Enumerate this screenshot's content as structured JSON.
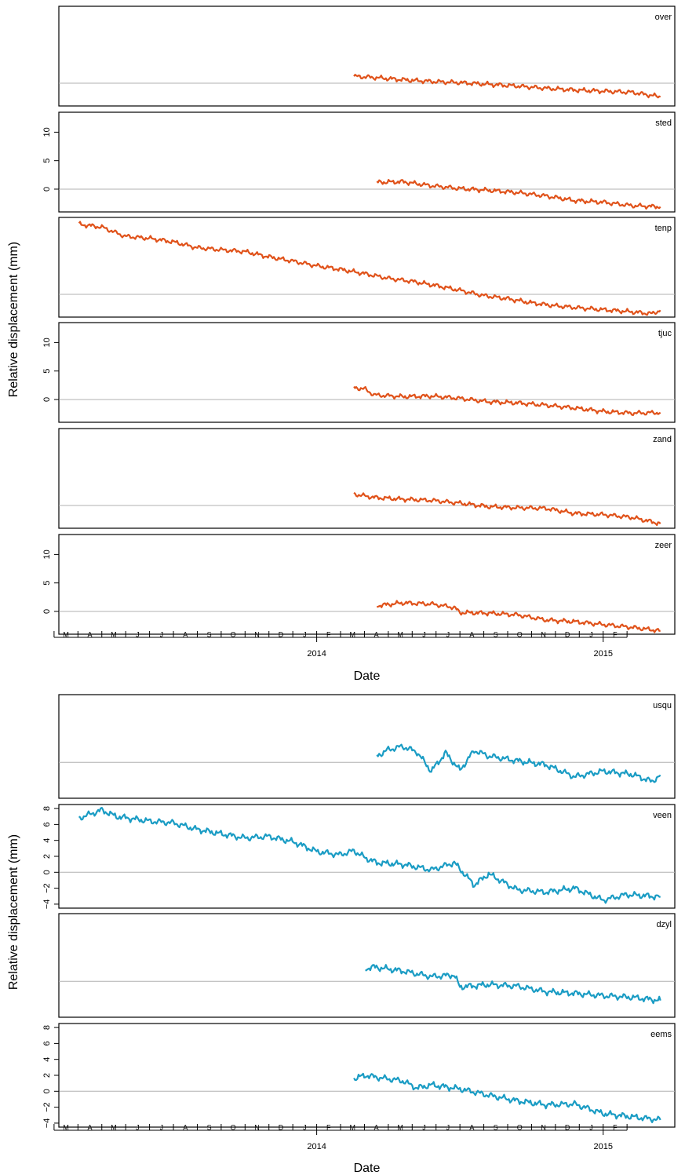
{
  "chart_data": [
    {
      "type": "line",
      "group": "orange",
      "ylabel": "Relative displacement (mm)",
      "xlabel": "Date",
      "year_labels": [
        "2014",
        "2015"
      ],
      "month_labels": [
        "M",
        "A",
        "M",
        "J",
        "J",
        "A",
        "S",
        "O",
        "N",
        "D",
        "J",
        "F",
        "M",
        "A",
        "M",
        "J",
        "J",
        "A",
        "S",
        "O",
        "N",
        "D",
        "J",
        "F"
      ],
      "ylim": [
        -4,
        13.5
      ],
      "yticks": [
        0,
        5,
        10
      ],
      "zero_line": true,
      "line_color": "#e0521a",
      "panels": [
        {
          "name": "over",
          "show_yaxis": false,
          "x": [
            2014.13,
            2014.2,
            2014.3,
            2014.4,
            2014.5,
            2014.6,
            2014.7,
            2014.8,
            2014.9,
            2015.0,
            2015.1,
            2015.2
          ],
          "y": [
            1.2,
            1.0,
            0.6,
            0.3,
            0.1,
            -0.2,
            -0.5,
            -0.9,
            -1.2,
            -1.4,
            -1.6,
            -2.4
          ]
        },
        {
          "name": "sted",
          "show_yaxis": true,
          "x": [
            2014.21,
            2014.3,
            2014.4,
            2014.5,
            2014.6,
            2014.7,
            2014.8,
            2014.9,
            2015.0,
            2015.1,
            2015.2
          ],
          "y": [
            1.2,
            1.3,
            0.6,
            0.1,
            -0.2,
            -0.6,
            -1.2,
            -2.0,
            -2.3,
            -2.9,
            -3.1
          ]
        },
        {
          "name": "tenp",
          "show_yaxis": false,
          "x": [
            2013.17,
            2013.25,
            2013.33,
            2013.42,
            2013.5,
            2013.58,
            2013.67,
            2013.75,
            2013.83,
            2013.92,
            2014.0,
            2014.08,
            2014.17,
            2014.25,
            2014.33,
            2014.42,
            2014.5,
            2014.58,
            2014.67,
            2014.75,
            2014.83,
            2014.92,
            2015.0,
            2015.08,
            2015.17,
            2015.2
          ],
          "y": [
            12.3,
            11.8,
            10.2,
            9.8,
            9.2,
            8.2,
            7.8,
            7.5,
            6.6,
            5.8,
            5.0,
            4.4,
            3.6,
            2.8,
            2.3,
            1.5,
            0.7,
            -0.2,
            -0.8,
            -1.5,
            -2.0,
            -2.4,
            -2.7,
            -3.0,
            -3.4,
            -2.8
          ]
        },
        {
          "name": "tjuc",
          "show_yaxis": true,
          "x": [
            2014.13,
            2014.17,
            2014.2,
            2014.3,
            2014.4,
            2014.5,
            2014.6,
            2014.7,
            2014.8,
            2014.9,
            2015.0,
            2015.1,
            2015.2
          ],
          "y": [
            2.1,
            1.8,
            0.8,
            0.5,
            0.6,
            0.2,
            -0.4,
            -0.6,
            -1.0,
            -1.5,
            -2.1,
            -2.4,
            -2.3
          ]
        },
        {
          "name": "zand",
          "show_yaxis": false,
          "x": [
            2014.13,
            2014.2,
            2014.3,
            2014.4,
            2014.5,
            2014.6,
            2014.7,
            2014.8,
            2014.9,
            2015.0,
            2015.1,
            2015.2
          ],
          "y": [
            2.0,
            1.4,
            1.1,
            0.9,
            0.4,
            -0.2,
            -0.4,
            -0.5,
            -1.4,
            -1.6,
            -2.1,
            -3.2
          ]
        },
        {
          "name": "zeer",
          "show_yaxis": true,
          "x": [
            2014.21,
            2014.3,
            2014.4,
            2014.48,
            2014.5,
            2014.6,
            2014.7,
            2014.8,
            2014.9,
            2015.0,
            2015.1,
            2015.2
          ],
          "y": [
            1.0,
            1.5,
            1.3,
            0.7,
            -0.2,
            -0.3,
            -0.6,
            -1.5,
            -1.8,
            -2.3,
            -2.8,
            -3.4
          ]
        }
      ]
    },
    {
      "type": "line",
      "group": "blue",
      "ylabel": "Relative displacement (mm)",
      "xlabel": "Date",
      "year_labels": [
        "2014",
        "2015"
      ],
      "month_labels": [
        "M",
        "A",
        "M",
        "J",
        "J",
        "A",
        "S",
        "O",
        "N",
        "D",
        "J",
        "F",
        "M",
        "A",
        "M",
        "J",
        "J",
        "A",
        "S",
        "O",
        "N",
        "D",
        "J",
        "F"
      ],
      "ylim": [
        -4.5,
        8.5
      ],
      "yticks": [
        -4,
        -2,
        0,
        2,
        4,
        6,
        8
      ],
      "zero_line": true,
      "line_color": "#1a9cc4",
      "panels": [
        {
          "name": "usqu",
          "show_yaxis": false,
          "x": [
            2014.21,
            2014.25,
            2014.3,
            2014.35,
            2014.4,
            2014.45,
            2014.5,
            2014.55,
            2014.6,
            2014.7,
            2014.8,
            2014.9,
            2015.0,
            2015.1,
            2015.17,
            2015.2
          ],
          "y": [
            0.8,
            1.6,
            2.0,
            1.3,
            -1.1,
            1.2,
            -1.0,
            1.5,
            0.8,
            0.2,
            -0.3,
            -1.8,
            -1.1,
            -1.5,
            -2.4,
            -1.6
          ]
        },
        {
          "name": "veen",
          "show_yaxis": true,
          "x": [
            2013.17,
            2013.25,
            2013.3,
            2013.42,
            2013.5,
            2013.58,
            2013.67,
            2013.75,
            2013.83,
            2013.92,
            2014.0,
            2014.08,
            2014.13,
            2014.17,
            2014.21,
            2014.3,
            2014.4,
            2014.48,
            2014.55,
            2014.6,
            2014.7,
            2014.8,
            2014.9,
            2015.0,
            2015.08,
            2015.17,
            2015.2
          ],
          "y": [
            6.8,
            7.8,
            7.0,
            6.4,
            6.2,
            5.4,
            4.8,
            4.3,
            4.5,
            3.8,
            2.6,
            2.2,
            2.7,
            1.8,
            1.2,
            1.0,
            0.3,
            1.2,
            -1.6,
            -0.2,
            -2.2,
            -2.5,
            -2.0,
            -3.5,
            -2.8,
            -3.0,
            -3.1
          ]
        },
        {
          "name": "dzyl",
          "show_yaxis": false,
          "x": [
            2014.17,
            2014.2,
            2014.3,
            2014.4,
            2014.48,
            2014.5,
            2014.6,
            2014.7,
            2014.8,
            2014.9,
            2015.0,
            2015.1,
            2015.2
          ],
          "y": [
            1.6,
            1.8,
            1.3,
            0.6,
            0.8,
            -0.7,
            -0.4,
            -0.6,
            -1.3,
            -1.5,
            -1.8,
            -2.0,
            -2.4
          ]
        },
        {
          "name": "eems",
          "show_yaxis": true,
          "x": [
            2014.13,
            2014.17,
            2014.2,
            2014.3,
            2014.35,
            2014.4,
            2014.5,
            2014.6,
            2014.7,
            2014.8,
            2014.9,
            2015.0,
            2015.1,
            2015.2
          ],
          "y": [
            1.6,
            2.0,
            1.8,
            1.3,
            0.4,
            0.8,
            0.3,
            -0.5,
            -1.2,
            -1.7,
            -1.6,
            -2.8,
            -3.2,
            -3.6
          ]
        }
      ]
    }
  ]
}
